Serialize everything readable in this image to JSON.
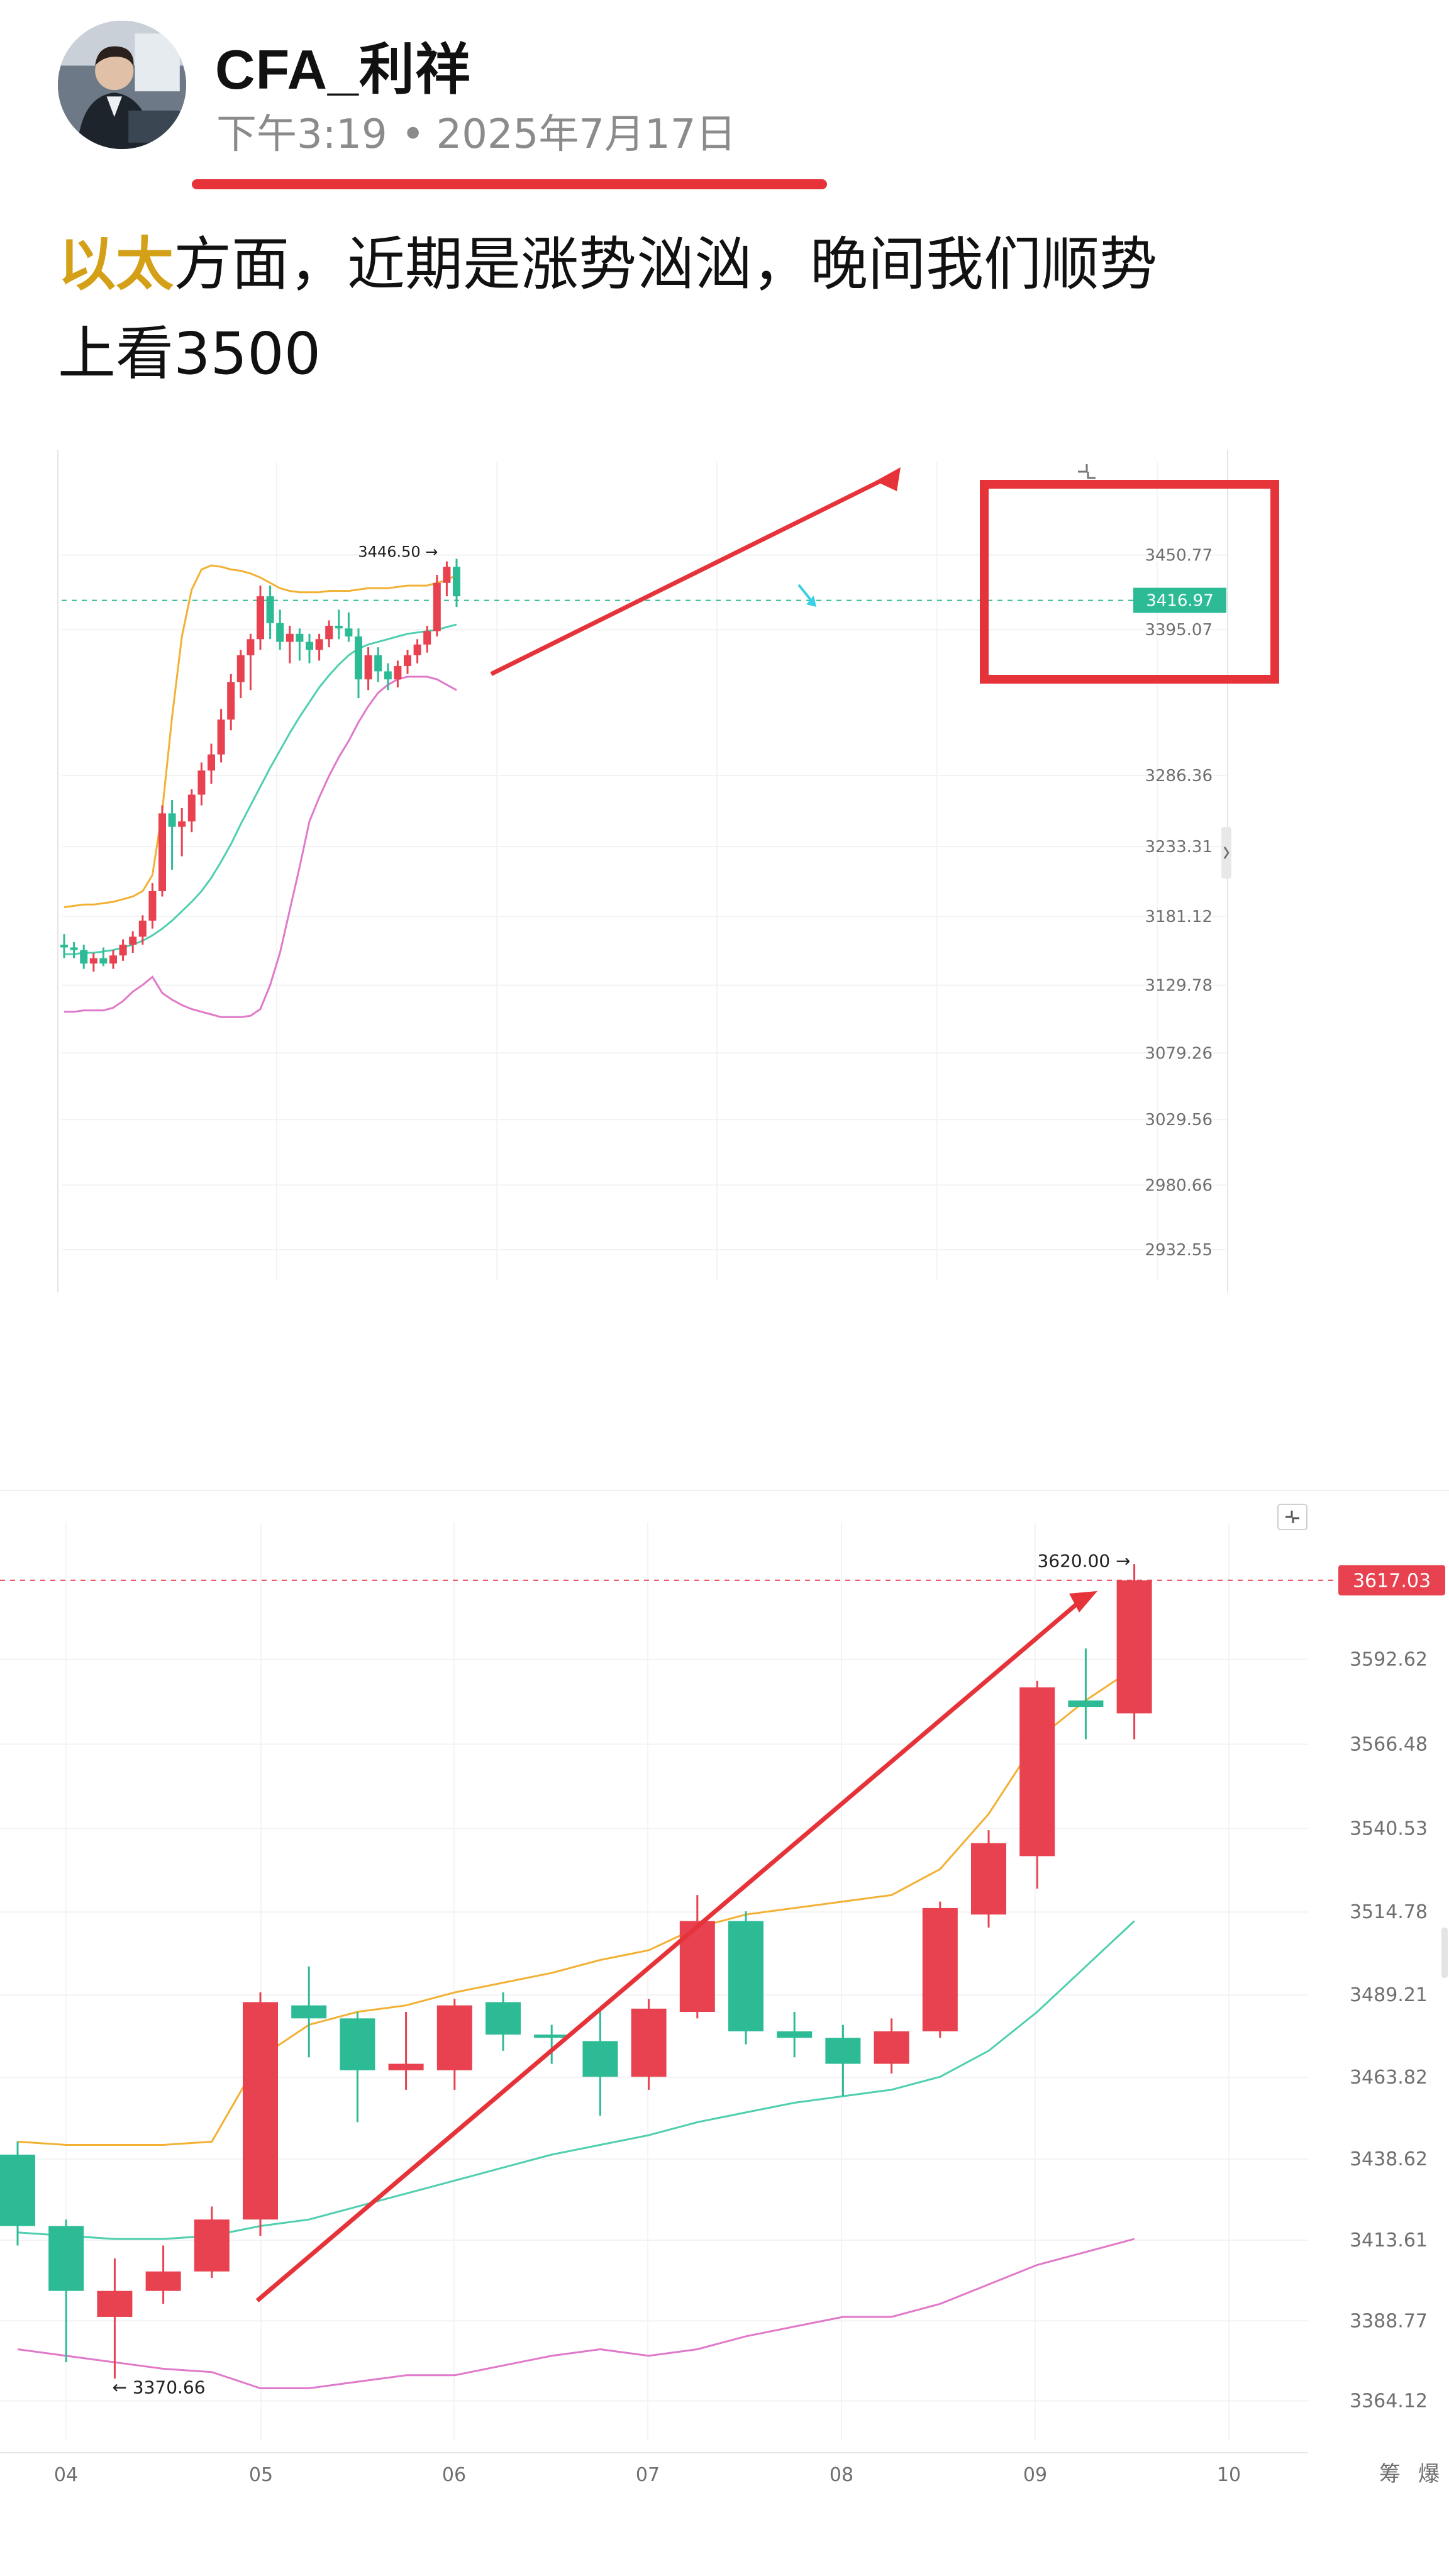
{
  "author": {
    "name": "CFA_利祥"
  },
  "meta": {
    "time": "下午3:19",
    "date": "2025年7月17日"
  },
  "post": {
    "highlight": "以太",
    "text_line1": "方面，近期是涨势汹汹，晚间我们顺势",
    "text_line2": "上看3500"
  },
  "icons": [
    "avatar",
    "fullscreen-icon",
    "scroll-handle-icon"
  ],
  "colors": {
    "up": "#e8414f",
    "down": "#2dbb96",
    "upper_band": "#f2b134",
    "middle_band": "#4fcfb0",
    "lower_band": "#e079c9",
    "annotation": "#e6333a",
    "current_price_line": "#2dbb96"
  },
  "chart_data": [
    {
      "type": "candlestick",
      "y_ticks": [
        "3450.77",
        "3395.07",
        "3286.36",
        "3233.31",
        "3181.12",
        "3129.78",
        "3079.26",
        "3029.56",
        "2980.66",
        "2932.55"
      ],
      "ylim": [
        2910,
        3520
      ],
      "high_label": "3446.50",
      "current_price": "3416.97",
      "series": [
        {
          "name": "candles",
          "ohlc": [
            [
              3160,
              3168,
              3150,
              3158
            ],
            [
              3158,
              3162,
              3150,
              3156
            ],
            [
              3156,
              3160,
              3142,
              3146
            ],
            [
              3146,
              3154,
              3140,
              3150
            ],
            [
              3150,
              3158,
              3144,
              3146
            ],
            [
              3146,
              3156,
              3142,
              3152
            ],
            [
              3152,
              3164,
              3148,
              3160
            ],
            [
              3160,
              3170,
              3154,
              3166
            ],
            [
              3166,
              3182,
              3160,
              3178
            ],
            [
              3178,
              3206,
              3172,
              3200
            ],
            [
              3200,
              3264,
              3196,
              3258
            ],
            [
              3258,
              3268,
              3216,
              3248
            ],
            [
              3248,
              3262,
              3226,
              3252
            ],
            [
              3252,
              3276,
              3244,
              3272
            ],
            [
              3272,
              3296,
              3264,
              3290
            ],
            [
              3290,
              3310,
              3280,
              3302
            ],
            [
              3302,
              3336,
              3296,
              3328
            ],
            [
              3328,
              3362,
              3320,
              3356
            ],
            [
              3356,
              3380,
              3344,
              3376
            ],
            [
              3376,
              3392,
              3350,
              3388
            ],
            [
              3388,
              3428,
              3380,
              3420
            ],
            [
              3420,
              3428,
              3388,
              3400
            ],
            [
              3400,
              3410,
              3380,
              3386
            ],
            [
              3386,
              3398,
              3370,
              3392
            ],
            [
              3392,
              3396,
              3372,
              3386
            ],
            [
              3386,
              3392,
              3370,
              3380
            ],
            [
              3380,
              3392,
              3372,
              3388
            ],
            [
              3388,
              3402,
              3382,
              3398
            ],
            [
              3398,
              3410,
              3388,
              3396
            ],
            [
              3396,
              3408,
              3386,
              3390
            ],
            [
              3390,
              3396,
              3344,
              3358
            ],
            [
              3358,
              3382,
              3350,
              3376
            ],
            [
              3376,
              3382,
              3356,
              3364
            ],
            [
              3364,
              3370,
              3350,
              3358
            ],
            [
              3358,
              3372,
              3352,
              3368
            ],
            [
              3368,
              3380,
              3362,
              3376
            ],
            [
              3376,
              3388,
              3370,
              3384
            ],
            [
              3384,
              3398,
              3378,
              3394
            ],
            [
              3394,
              3436,
              3390,
              3430
            ],
            [
              3430,
              3446,
              3420,
              3442
            ],
            [
              3442,
              3448,
              3412,
              3420
            ]
          ]
        },
        {
          "name": "upper_band",
          "values": [
            3188,
            3189,
            3190,
            3190,
            3191,
            3192,
            3194,
            3196,
            3200,
            3212,
            3260,
            3330,
            3390,
            3425,
            3440,
            3443,
            3442,
            3440,
            3439,
            3437,
            3434,
            3430,
            3426,
            3424,
            3423,
            3423,
            3423,
            3424,
            3424,
            3424,
            3425,
            3426,
            3426,
            3426,
            3427,
            3428,
            3428,
            3428,
            3430,
            3432,
            3436
          ]
        },
        {
          "name": "middle_band",
          "values": [
            3153,
            3153,
            3154,
            3154,
            3155,
            3156,
            3158,
            3160,
            3163,
            3167,
            3172,
            3178,
            3185,
            3192,
            3200,
            3210,
            3222,
            3235,
            3250,
            3264,
            3278,
            3292,
            3305,
            3318,
            3330,
            3341,
            3352,
            3361,
            3369,
            3376,
            3381,
            3384,
            3386,
            3388,
            3390,
            3392,
            3393,
            3394,
            3395,
            3397,
            3399
          ]
        },
        {
          "name": "lower_band",
          "values": [
            3110,
            3110,
            3111,
            3111,
            3111,
            3113,
            3118,
            3125,
            3130,
            3136,
            3124,
            3119,
            3115,
            3112,
            3110,
            3108,
            3106,
            3106,
            3106,
            3107,
            3112,
            3130,
            3154,
            3186,
            3218,
            3252,
            3270,
            3286,
            3300,
            3312,
            3326,
            3338,
            3348,
            3354,
            3358,
            3360,
            3360,
            3360,
            3358,
            3354,
            3350
          ]
        }
      ]
    },
    {
      "type": "candlestick",
      "x_ticks": [
        "04",
        "05",
        "06",
        "07",
        "08",
        "09",
        "10"
      ],
      "y_ticks": [
        "3592.62",
        "3566.48",
        "3540.53",
        "3514.78",
        "3489.21",
        "3463.82",
        "3438.62",
        "3413.61",
        "3388.77",
        "3364.12"
      ],
      "ylim": [
        3352,
        3635
      ],
      "high_label": "3620.00",
      "low_label": "3370.66",
      "current_price": "3617.03",
      "bottom_labels": [
        "筹",
        "爆"
      ],
      "series": [
        {
          "name": "candles",
          "ohlc": [
            [
              3440,
              3444,
              3412,
              3418
            ],
            [
              3418,
              3420,
              3376,
              3398
            ],
            [
              3390,
              3408,
              3371,
              3398
            ],
            [
              3398,
              3412,
              3394,
              3404
            ],
            [
              3404,
              3424,
              3402,
              3420
            ],
            [
              3420,
              3490,
              3415,
              3487
            ],
            [
              3486,
              3498,
              3470,
              3482
            ],
            [
              3482,
              3484,
              3450,
              3466
            ],
            [
              3466,
              3484,
              3460,
              3468
            ],
            [
              3466,
              3488,
              3460,
              3486
            ],
            [
              3487,
              3490,
              3472,
              3477
            ],
            [
              3477,
              3480,
              3468,
              3476
            ],
            [
              3475,
              3485,
              3452,
              3464
            ],
            [
              3464,
              3488,
              3460,
              3485
            ],
            [
              3484,
              3520,
              3482,
              3512
            ],
            [
              3512,
              3515,
              3474,
              3478
            ],
            [
              3478,
              3484,
              3470,
              3476
            ],
            [
              3476,
              3480,
              3458,
              3468
            ],
            [
              3468,
              3482,
              3465,
              3478
            ],
            [
              3478,
              3518,
              3476,
              3516
            ],
            [
              3514,
              3540,
              3510,
              3536
            ],
            [
              3532,
              3586,
              3522,
              3584
            ],
            [
              3580,
              3596,
              3568,
              3578
            ],
            [
              3576,
              3622,
              3568,
              3617
            ]
          ]
        },
        {
          "name": "upper_band",
          "values": [
            3444,
            3443,
            3443,
            3443,
            3444,
            3470,
            3480,
            3484,
            3486,
            3490,
            3493,
            3496,
            3500,
            3503,
            3510,
            3514,
            3516,
            3518,
            3520,
            3528,
            3545,
            3568,
            3580,
            3590
          ]
        },
        {
          "name": "middle_band",
          "values": [
            3416,
            3415,
            3414,
            3414,
            3415,
            3418,
            3420,
            3424,
            3428,
            3432,
            3436,
            3440,
            3443,
            3446,
            3450,
            3453,
            3456,
            3458,
            3460,
            3464,
            3472,
            3484,
            3498,
            3512
          ]
        },
        {
          "name": "lower_band",
          "values": [
            3380,
            3378,
            3376,
            3374,
            3373,
            3368,
            3368,
            3370,
            3372,
            3372,
            3375,
            3378,
            3380,
            3378,
            3380,
            3384,
            3387,
            3390,
            3390,
            3394,
            3400,
            3406,
            3410,
            3414
          ]
        }
      ]
    }
  ]
}
